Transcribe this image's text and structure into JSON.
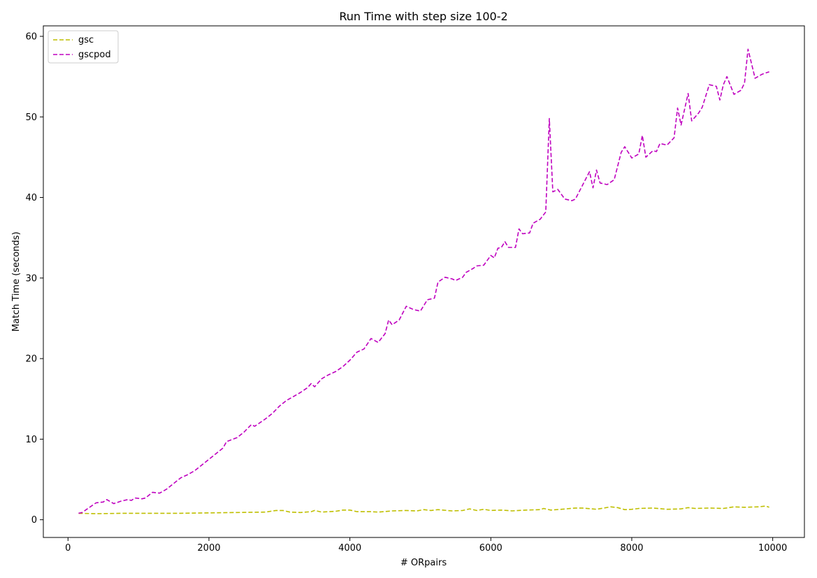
{
  "chart_data": {
    "type": "line",
    "title": "Run Time with step size 100-2",
    "xlabel": "# ORpairs",
    "ylabel": "Match Time (seconds)",
    "xlim": [
      -350,
      10450
    ],
    "ylim": [
      -2.2,
      61.3
    ],
    "xticks": [
      0,
      2000,
      4000,
      6000,
      8000,
      10000
    ],
    "yticks": [
      0,
      10,
      20,
      30,
      40,
      50,
      60
    ],
    "grid": false,
    "legend_position": "top-left",
    "series": [
      {
        "name": "gsc",
        "color": "#bfbf00",
        "style": "dashed",
        "points": [
          [
            150,
            0.8
          ],
          [
            400,
            0.75
          ],
          [
            800,
            0.8
          ],
          [
            1200,
            0.8
          ],
          [
            1600,
            0.8
          ],
          [
            2000,
            0.85
          ],
          [
            2400,
            0.9
          ],
          [
            2800,
            0.95
          ],
          [
            2950,
            1.15
          ],
          [
            3050,
            1.15
          ],
          [
            3150,
            0.95
          ],
          [
            3300,
            0.9
          ],
          [
            3450,
            1.0
          ],
          [
            3500,
            1.15
          ],
          [
            3600,
            0.95
          ],
          [
            3800,
            1.05
          ],
          [
            3900,
            1.2
          ],
          [
            4000,
            1.2
          ],
          [
            4100,
            1.0
          ],
          [
            4300,
            1.0
          ],
          [
            4400,
            0.95
          ],
          [
            4600,
            1.1
          ],
          [
            4800,
            1.15
          ],
          [
            4950,
            1.1
          ],
          [
            5050,
            1.25
          ],
          [
            5150,
            1.15
          ],
          [
            5250,
            1.25
          ],
          [
            5450,
            1.1
          ],
          [
            5600,
            1.15
          ],
          [
            5700,
            1.35
          ],
          [
            5800,
            1.15
          ],
          [
            5900,
            1.3
          ],
          [
            6000,
            1.15
          ],
          [
            6150,
            1.2
          ],
          [
            6300,
            1.1
          ],
          [
            6500,
            1.2
          ],
          [
            6700,
            1.25
          ],
          [
            6750,
            1.4
          ],
          [
            6850,
            1.2
          ],
          [
            7000,
            1.3
          ],
          [
            7200,
            1.45
          ],
          [
            7300,
            1.45
          ],
          [
            7500,
            1.3
          ],
          [
            7700,
            1.6
          ],
          [
            7800,
            1.5
          ],
          [
            7900,
            1.25
          ],
          [
            8000,
            1.3
          ],
          [
            8100,
            1.4
          ],
          [
            8300,
            1.45
          ],
          [
            8500,
            1.3
          ],
          [
            8700,
            1.35
          ],
          [
            8800,
            1.5
          ],
          [
            8900,
            1.4
          ],
          [
            9100,
            1.45
          ],
          [
            9300,
            1.4
          ],
          [
            9450,
            1.6
          ],
          [
            9600,
            1.55
          ],
          [
            9800,
            1.6
          ],
          [
            9900,
            1.7
          ],
          [
            9950,
            1.55
          ]
        ]
      },
      {
        "name": "gscpod",
        "color": "#bf00bf",
        "style": "dashed",
        "points": [
          [
            150,
            0.8
          ],
          [
            200,
            0.9
          ],
          [
            300,
            1.5
          ],
          [
            400,
            2.1
          ],
          [
            500,
            2.2
          ],
          [
            550,
            2.5
          ],
          [
            650,
            2.0
          ],
          [
            750,
            2.3
          ],
          [
            850,
            2.5
          ],
          [
            900,
            2.4
          ],
          [
            950,
            2.7
          ],
          [
            1050,
            2.6
          ],
          [
            1100,
            2.7
          ],
          [
            1200,
            3.4
          ],
          [
            1300,
            3.3
          ],
          [
            1400,
            3.8
          ],
          [
            1500,
            4.5
          ],
          [
            1600,
            5.2
          ],
          [
            1700,
            5.6
          ],
          [
            1800,
            6.1
          ],
          [
            1900,
            6.8
          ],
          [
            2000,
            7.5
          ],
          [
            2100,
            8.2
          ],
          [
            2200,
            8.9
          ],
          [
            2250,
            9.7
          ],
          [
            2400,
            10.2
          ],
          [
            2500,
            10.9
          ],
          [
            2600,
            11.8
          ],
          [
            2650,
            11.6
          ],
          [
            2800,
            12.5
          ],
          [
            2900,
            13.2
          ],
          [
            3000,
            14.1
          ],
          [
            3100,
            14.8
          ],
          [
            3200,
            15.3
          ],
          [
            3300,
            15.8
          ],
          [
            3400,
            16.4
          ],
          [
            3450,
            16.9
          ],
          [
            3500,
            16.5
          ],
          [
            3600,
            17.5
          ],
          [
            3700,
            18.0
          ],
          [
            3800,
            18.4
          ],
          [
            3900,
            19.0
          ],
          [
            4000,
            19.8
          ],
          [
            4100,
            20.8
          ],
          [
            4200,
            21.2
          ],
          [
            4300,
            22.5
          ],
          [
            4400,
            22.0
          ],
          [
            4500,
            23.1
          ],
          [
            4550,
            24.8
          ],
          [
            4600,
            24.2
          ],
          [
            4700,
            24.8
          ],
          [
            4800,
            26.5
          ],
          [
            4900,
            26.1
          ],
          [
            5000,
            25.9
          ],
          [
            5100,
            27.3
          ],
          [
            5200,
            27.5
          ],
          [
            5250,
            29.5
          ],
          [
            5350,
            30.1
          ],
          [
            5450,
            29.9
          ],
          [
            5500,
            29.7
          ],
          [
            5600,
            30.1
          ],
          [
            5650,
            30.7
          ],
          [
            5750,
            31.2
          ],
          [
            5800,
            31.5
          ],
          [
            5900,
            31.6
          ],
          [
            6000,
            32.8
          ],
          [
            6050,
            32.5
          ],
          [
            6100,
            33.7
          ],
          [
            6150,
            33.8
          ],
          [
            6200,
            34.5
          ],
          [
            6250,
            33.8
          ],
          [
            6350,
            33.8
          ],
          [
            6400,
            36.1
          ],
          [
            6450,
            35.5
          ],
          [
            6550,
            35.6
          ],
          [
            6600,
            36.8
          ],
          [
            6700,
            37.3
          ],
          [
            6780,
            38.2
          ],
          [
            6830,
            49.8
          ],
          [
            6880,
            40.7
          ],
          [
            6950,
            41.0
          ],
          [
            7050,
            39.8
          ],
          [
            7150,
            39.6
          ],
          [
            7200,
            39.8
          ],
          [
            7300,
            41.5
          ],
          [
            7400,
            43.2
          ],
          [
            7450,
            41.2
          ],
          [
            7500,
            43.4
          ],
          [
            7550,
            41.8
          ],
          [
            7650,
            41.6
          ],
          [
            7750,
            42.2
          ],
          [
            7850,
            45.6
          ],
          [
            7900,
            46.3
          ],
          [
            8000,
            44.9
          ],
          [
            8100,
            45.4
          ],
          [
            8150,
            47.7
          ],
          [
            8200,
            45.0
          ],
          [
            8300,
            45.8
          ],
          [
            8350,
            45.7
          ],
          [
            8400,
            46.7
          ],
          [
            8500,
            46.5
          ],
          [
            8600,
            47.4
          ],
          [
            8650,
            51.1
          ],
          [
            8700,
            49.0
          ],
          [
            8800,
            52.9
          ],
          [
            8850,
            49.5
          ],
          [
            8950,
            50.5
          ],
          [
            9000,
            51.2
          ],
          [
            9100,
            54.0
          ],
          [
            9200,
            53.8
          ],
          [
            9250,
            52.1
          ],
          [
            9300,
            54.0
          ],
          [
            9350,
            55.0
          ],
          [
            9450,
            52.8
          ],
          [
            9550,
            53.3
          ],
          [
            9600,
            54.2
          ],
          [
            9650,
            58.4
          ],
          [
            9750,
            54.8
          ],
          [
            9850,
            55.3
          ],
          [
            9950,
            55.6
          ]
        ]
      }
    ]
  }
}
